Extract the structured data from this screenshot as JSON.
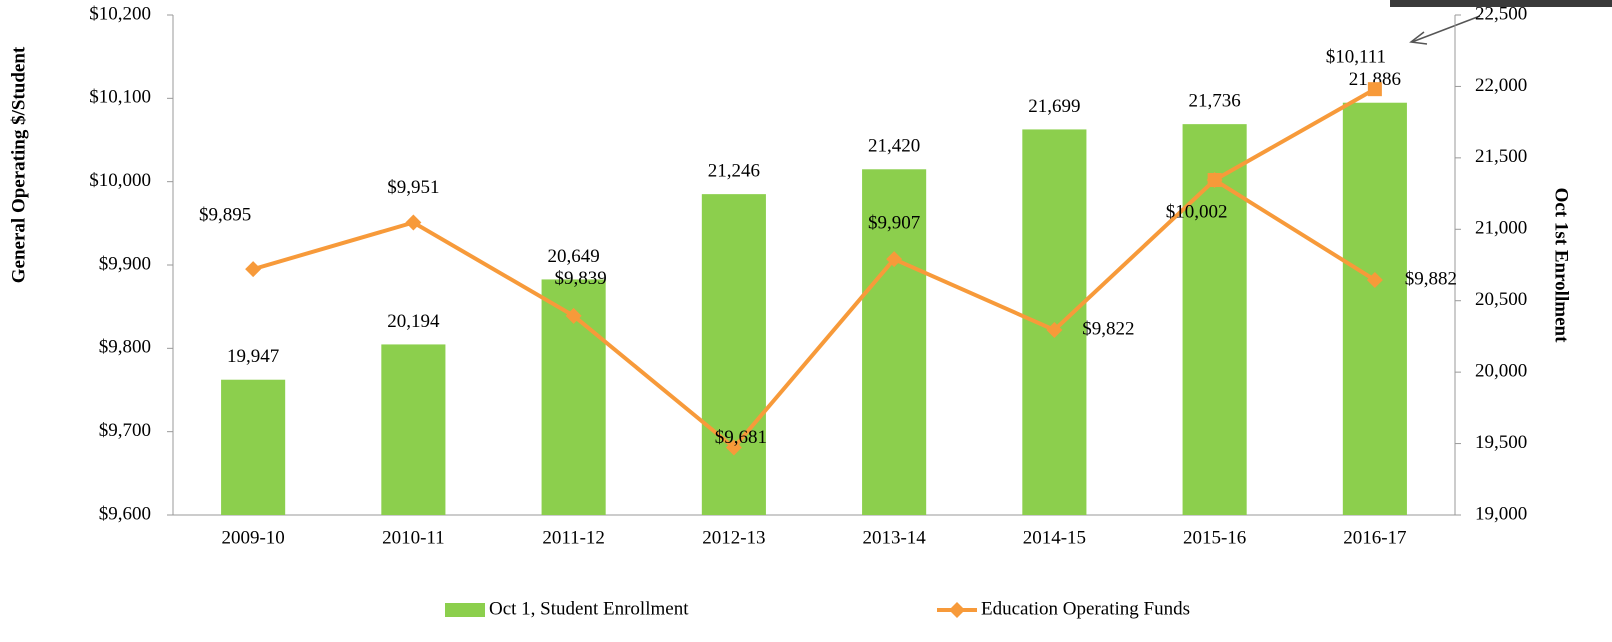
{
  "chart_data": {
    "type": "bar_line",
    "categories": [
      "2009-10",
      "2010-11",
      "2011-12",
      "2012-13",
      "2013-14",
      "2014-15",
      "2015-16",
      "2016-17"
    ],
    "ylabel": "General Operating $/Student",
    "y2label": "Oct 1st Enrollment",
    "ylim": [
      9600,
      10200
    ],
    "yticks": [
      {
        "value": 9600,
        "label": "$9,600"
      },
      {
        "value": 9700,
        "label": "$9,700"
      },
      {
        "value": 9800,
        "label": "$9,800"
      },
      {
        "value": 9900,
        "label": "$9,900"
      },
      {
        "value": 10000,
        "label": "$10,000"
      },
      {
        "value": 10100,
        "label": "$10,100"
      },
      {
        "value": 10200,
        "label": "$10,200"
      }
    ],
    "y2lim": [
      19000,
      22500
    ],
    "y2ticks": [
      {
        "value": 19000,
        "label": "19,000"
      },
      {
        "value": 19500,
        "label": "19,500"
      },
      {
        "value": 20000,
        "label": "20,000"
      },
      {
        "value": 20500,
        "label": "20,500"
      },
      {
        "value": 21000,
        "label": "21,000"
      },
      {
        "value": 21500,
        "label": "21,500"
      },
      {
        "value": 22000,
        "label": "22,000"
      },
      {
        "value": 22500,
        "label": "22,500"
      }
    ],
    "legend": "bottom",
    "series": [
      {
        "name": "Oct 1, Student Enrollment",
        "type": "bar",
        "axis": "y2",
        "color": "#8ccf4d",
        "values": [
          19947,
          20194,
          20649,
          21246,
          21420,
          21699,
          21736,
          21886
        ],
        "value_labels": [
          "19,947",
          "20,194",
          "20,649",
          "21,246",
          "21,420",
          "21,699",
          "21,736",
          "21,886"
        ]
      },
      {
        "name": "Education Operating Funds",
        "type": "line",
        "color": "#f79a3a",
        "marker": "diamond",
        "values": [
          9895,
          9951,
          9839,
          9681,
          9907,
          9822,
          10002,
          9882
        ],
        "value_labels": [
          "$9,895",
          "$9,951",
          "$9,839",
          "$9,681",
          "$9,907",
          "$9,822",
          "$10,002",
          "$9,882"
        ]
      },
      {
        "type": "line",
        "color": "#f79a3a",
        "marker": "square",
        "values": [
          null,
          null,
          null,
          null,
          null,
          null,
          10002,
          10111
        ],
        "value_labels": [
          null,
          null,
          null,
          null,
          null,
          null,
          null,
          "$10,111"
        ]
      }
    ]
  }
}
